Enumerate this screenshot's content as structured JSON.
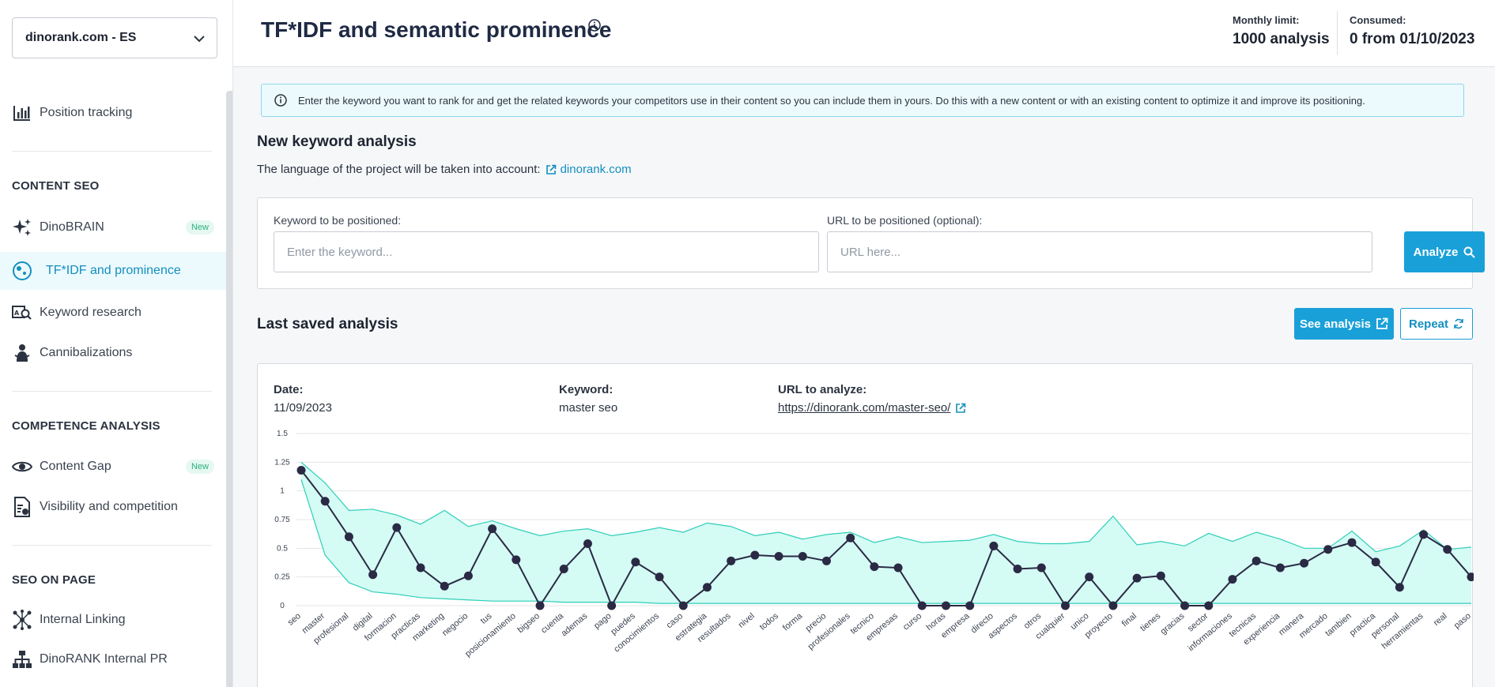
{
  "sidebar": {
    "project_selector": "dinorank.com - ES",
    "items": {
      "position_tracking": "Position tracking",
      "dinobrain": "DinoBRAIN",
      "tfidf": "TF*IDF and prominence",
      "keyword_research": "Keyword research",
      "cannibalizations": "Cannibalizations",
      "content_gap": "Content Gap",
      "visibility": "Visibility and competition",
      "internal_linking": "Internal Linking",
      "internal_pr": "DinoRANK Internal PR"
    },
    "sections": {
      "content_seo": "CONTENT SEO",
      "competence": "COMPETENCE ANALYSIS",
      "seo_on_page": "SEO ON PAGE"
    },
    "badge_new": "New"
  },
  "header": {
    "title": "TF*IDF and semantic prominence",
    "monthly_limit_label": "Monthly limit:",
    "monthly_limit_value": "1000 analysis",
    "consumed_label": "Consumed:",
    "consumed_value": "0 from 01/10/2023"
  },
  "main": {
    "info_text": "Enter the keyword you want to rank for and get the related keywords your competitors use in their content so you can include them in yours. Do this with a new content or with an existing content to optimize it and improve its positioning.",
    "new_analysis_title": "New keyword analysis",
    "language_text": "The language of the project will be taken into account:",
    "language_link": "dinorank.com",
    "keyword_label": "Keyword to be positioned:",
    "keyword_placeholder": "Enter the keyword...",
    "url_label": "URL to be positioned (optional):",
    "url_placeholder": "URL here...",
    "analyze_button": "Analyze",
    "last_saved_title": "Last saved analysis",
    "see_analysis_button": "See analysis",
    "repeat_button": "Repeat",
    "date_label": "Date:",
    "date_value": "11/09/2023",
    "keyword_meta_label": "Keyword:",
    "keyword_meta_value": "master seo",
    "url_meta_label": "URL to analyze:",
    "url_meta_value": "https://dinorank.com/master-seo/"
  },
  "colors": {
    "accent": "#1aa0d8",
    "band_fill": "#d4fbf4",
    "band_line": "#2ecfb8",
    "series_line": "#2a2a45"
  },
  "chart_data": {
    "type": "area",
    "y_ticks": [
      "0",
      "0.25",
      "0.5",
      "0.75",
      "1",
      "1.25",
      "1.5"
    ],
    "ylim": [
      0,
      1.5
    ],
    "categories": [
      "seo",
      "master",
      "profesional",
      "digital",
      "formacion",
      "practicas",
      "marketing",
      "negocio",
      "tus",
      "posicionamiento",
      "bigseo",
      "cuenta",
      "ademas",
      "pago",
      "puedes",
      "conocimientos",
      "caso",
      "estrategia",
      "resultados",
      "nivel",
      "todos",
      "forma",
      "precio",
      "profesionales",
      "tecnico",
      "empresas",
      "curso",
      "horas",
      "empresa",
      "directo",
      "aspectos",
      "otros",
      "cualquier",
      "unico",
      "proyecto",
      "final",
      "tienes",
      "gracias",
      "sector",
      "informaciones",
      "tecnicas",
      "experiencia",
      "manera",
      "mercado",
      "tambien",
      "practica",
      "personal",
      "herramientas",
      "real",
      "paso"
    ],
    "series": [
      {
        "role": "band_max",
        "values": [
          1.25,
          1.07,
          0.83,
          0.84,
          0.79,
          0.71,
          0.83,
          0.69,
          0.74,
          0.67,
          0.61,
          0.65,
          0.67,
          0.61,
          0.64,
          0.68,
          0.64,
          0.72,
          0.69,
          0.61,
          0.64,
          0.58,
          0.62,
          0.64,
          0.55,
          0.6,
          0.55,
          0.56,
          0.57,
          0.62,
          0.56,
          0.54,
          0.54,
          0.56,
          0.78,
          0.53,
          0.56,
          0.52,
          0.63,
          0.56,
          0.64,
          0.58,
          0.5,
          0.5,
          0.65,
          0.47,
          0.52,
          0.66,
          0.49,
          0.51
        ]
      },
      {
        "role": "band_min",
        "values": [
          1.1,
          0.44,
          0.2,
          0.12,
          0.1,
          0.07,
          0.06,
          0.05,
          0.04,
          0.04,
          0.04,
          0.03,
          0.03,
          0.03,
          0.03,
          0.02,
          0.02,
          0.02,
          0.02,
          0.02,
          0.02,
          0.02,
          0.02,
          0.02,
          0.02,
          0.02,
          0.02,
          0.02,
          0.02,
          0.02,
          0.02,
          0.02,
          0.02,
          0.02,
          0.02,
          0.02,
          0.02,
          0.02,
          0.02,
          0.02,
          0.02,
          0.02,
          0.02,
          0.02,
          0.02,
          0.02,
          0.02,
          0.02,
          0.02,
          0.02
        ]
      },
      {
        "role": "keyword",
        "values": [
          1.18,
          0.91,
          0.6,
          0.27,
          0.68,
          0.33,
          0.17,
          0.26,
          0.67,
          0.4,
          0.0,
          0.32,
          0.54,
          0.0,
          0.38,
          0.25,
          0.0,
          0.16,
          0.39,
          0.44,
          0.43,
          0.43,
          0.39,
          0.59,
          0.34,
          0.33,
          0.0,
          0.0,
          0.0,
          0.52,
          0.32,
          0.33,
          0.0,
          0.25,
          0.0,
          0.24,
          0.26,
          0.0,
          0.0,
          0.23,
          0.39,
          0.33,
          0.37,
          0.49,
          0.55,
          0.38,
          0.16,
          0.62,
          0.49,
          0.25
        ]
      }
    ]
  }
}
